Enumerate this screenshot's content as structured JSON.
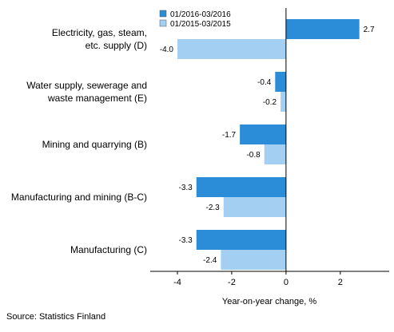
{
  "chart_data": {
    "type": "bar",
    "orientation": "horizontal",
    "categories": [
      [
        "Electricity, gas, steam,",
        "etc. supply (D)"
      ],
      [
        "Water supply, sewerage and",
        "waste management (E)"
      ],
      [
        "Mining and quarrying (B)"
      ],
      [
        "Manufacturing and mining (B-C)"
      ],
      [
        "Manufacturing (C)"
      ]
    ],
    "series": [
      {
        "name": "01/2016-03/2016",
        "color": "#2b8cd8",
        "values": [
          2.7,
          -0.4,
          -1.7,
          -3.3,
          -3.3
        ],
        "labels": [
          "2.7",
          "-0.4",
          "-1.7",
          "-3.3",
          "-3.3"
        ]
      },
      {
        "name": "01/2015-03/2015",
        "color": "#a3cff2",
        "values": [
          -4.0,
          -0.2,
          -0.8,
          -2.3,
          -2.4
        ],
        "labels": [
          "-4.0",
          "-0.2",
          "-0.8",
          "-2.3",
          "-2.4"
        ]
      }
    ],
    "xlabel": "Year-on-year change, %",
    "xlim": [
      -5,
      3.8
    ],
    "xticks": [
      -4,
      -2,
      0,
      2
    ],
    "xtick_labels": [
      "-4",
      "-2",
      "0",
      "2"
    ],
    "legend": "top-left",
    "grid": false
  },
  "source": "Source: Statistics Finland"
}
